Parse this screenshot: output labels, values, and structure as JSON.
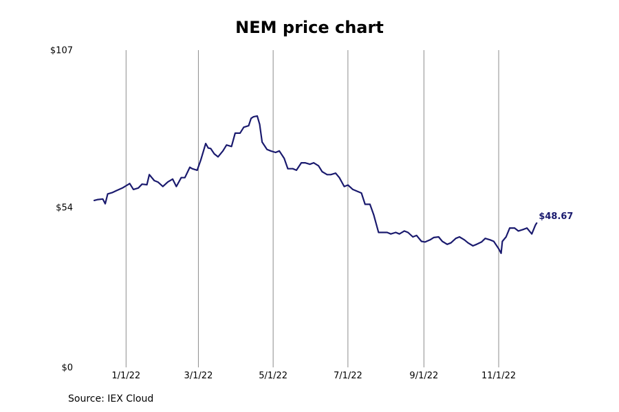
{
  "chart_data": {
    "type": "line",
    "title": "NEM price chart",
    "source": "Source: IEX Cloud",
    "xlabel": "",
    "ylabel": "",
    "y_ticks": [
      {
        "value": 0,
        "label": "$0"
      },
      {
        "value": 54,
        "label": "$54"
      },
      {
        "value": 107,
        "label": "$107"
      }
    ],
    "ylim": [
      0,
      107
    ],
    "xlim": [
      "2021-11-22",
      "2022-12-31"
    ],
    "x_ticks": [
      {
        "date": "2022-01-01",
        "label": "1/1/22"
      },
      {
        "date": "2022-03-01",
        "label": "3/1/22"
      },
      {
        "date": "2022-05-01",
        "label": "5/1/22"
      },
      {
        "date": "2022-07-01",
        "label": "7/1/22"
      },
      {
        "date": "2022-09-01",
        "label": "9/1/22"
      },
      {
        "date": "2022-11-01",
        "label": "11/1/22"
      }
    ],
    "vertical_grid": true,
    "line_color": "#1a1a6e",
    "last_label": "$48.67",
    "series": [
      {
        "name": "",
        "points": [
          [
            "2021-12-06",
            56.3
          ],
          [
            "2021-12-09",
            56.6
          ],
          [
            "2021-12-13",
            56.8
          ],
          [
            "2021-12-15",
            55.2
          ],
          [
            "2021-12-17",
            58.5
          ],
          [
            "2021-12-21",
            59.0
          ],
          [
            "2021-12-24",
            59.6
          ],
          [
            "2021-12-29",
            60.5
          ],
          [
            "2022-01-04",
            62.0
          ],
          [
            "2022-01-07",
            60.0
          ],
          [
            "2022-01-11",
            60.5
          ],
          [
            "2022-01-14",
            61.8
          ],
          [
            "2022-01-18",
            61.6
          ],
          [
            "2022-01-20",
            65.0
          ],
          [
            "2022-01-24",
            63.0
          ],
          [
            "2022-01-27",
            62.5
          ],
          [
            "2022-01-31",
            61.0
          ],
          [
            "2022-02-04",
            62.5
          ],
          [
            "2022-02-08",
            63.5
          ],
          [
            "2022-02-11",
            61.0
          ],
          [
            "2022-02-15",
            64.0
          ],
          [
            "2022-02-18",
            64.0
          ],
          [
            "2022-02-22",
            67.5
          ],
          [
            "2022-02-24",
            67.0
          ],
          [
            "2022-02-28",
            66.5
          ],
          [
            "2022-03-03",
            70.0
          ],
          [
            "2022-03-07",
            75.5
          ],
          [
            "2022-03-09",
            74.0
          ],
          [
            "2022-03-11",
            73.8
          ],
          [
            "2022-03-14",
            72.0
          ],
          [
            "2022-03-17",
            71.0
          ],
          [
            "2022-03-21",
            73.0
          ],
          [
            "2022-03-24",
            75.0
          ],
          [
            "2022-03-28",
            74.5
          ],
          [
            "2022-03-31",
            79.0
          ],
          [
            "2022-04-04",
            79.0
          ],
          [
            "2022-04-07",
            81.0
          ],
          [
            "2022-04-11",
            81.5
          ],
          [
            "2022-04-13",
            84.0
          ],
          [
            "2022-04-15",
            84.5
          ],
          [
            "2022-04-18",
            84.8
          ],
          [
            "2022-04-20",
            82.0
          ],
          [
            "2022-04-22",
            76.0
          ],
          [
            "2022-04-26",
            73.5
          ],
          [
            "2022-04-29",
            73.0
          ],
          [
            "2022-05-03",
            72.5
          ],
          [
            "2022-05-06",
            73.0
          ],
          [
            "2022-05-10",
            70.5
          ],
          [
            "2022-05-13",
            67.0
          ],
          [
            "2022-05-17",
            67.0
          ],
          [
            "2022-05-20",
            66.5
          ],
          [
            "2022-05-24",
            69.0
          ],
          [
            "2022-05-27",
            69.0
          ],
          [
            "2022-05-31",
            68.5
          ],
          [
            "2022-06-03",
            69.0
          ],
          [
            "2022-06-07",
            68.0
          ],
          [
            "2022-06-10",
            66.0
          ],
          [
            "2022-06-14",
            65.0
          ],
          [
            "2022-06-17",
            65.0
          ],
          [
            "2022-06-21",
            65.5
          ],
          [
            "2022-06-24",
            64.0
          ],
          [
            "2022-06-28",
            61.0
          ],
          [
            "2022-07-01",
            61.5
          ],
          [
            "2022-07-05",
            60.0
          ],
          [
            "2022-07-08",
            59.5
          ],
          [
            "2022-07-12",
            58.8
          ],
          [
            "2022-07-15",
            55.0
          ],
          [
            "2022-07-19",
            55.0
          ],
          [
            "2022-07-22",
            51.5
          ],
          [
            "2022-07-26",
            45.5
          ],
          [
            "2022-07-29",
            45.5
          ],
          [
            "2022-08-02",
            45.5
          ],
          [
            "2022-08-05",
            45.0
          ],
          [
            "2022-08-09",
            45.5
          ],
          [
            "2022-08-12",
            45.0
          ],
          [
            "2022-08-16",
            46.0
          ],
          [
            "2022-08-19",
            45.5
          ],
          [
            "2022-08-23",
            44.0
          ],
          [
            "2022-08-26",
            44.5
          ],
          [
            "2022-08-30",
            42.5
          ],
          [
            "2022-09-02",
            42.3
          ],
          [
            "2022-09-06",
            43.0
          ],
          [
            "2022-09-09",
            43.8
          ],
          [
            "2022-09-13",
            44.0
          ],
          [
            "2022-09-16",
            42.5
          ],
          [
            "2022-09-20",
            41.5
          ],
          [
            "2022-09-23",
            42.0
          ],
          [
            "2022-09-27",
            43.5
          ],
          [
            "2022-09-30",
            44.0
          ],
          [
            "2022-10-04",
            43.0
          ],
          [
            "2022-10-07",
            42.0
          ],
          [
            "2022-10-11",
            41.0
          ],
          [
            "2022-10-14",
            41.5
          ],
          [
            "2022-10-18",
            42.3
          ],
          [
            "2022-10-21",
            43.5
          ],
          [
            "2022-10-25",
            43.0
          ],
          [
            "2022-10-28",
            42.5
          ],
          [
            "2022-11-01",
            40.0
          ],
          [
            "2022-11-03",
            38.5
          ],
          [
            "2022-11-04",
            42.5
          ],
          [
            "2022-11-07",
            44.0
          ],
          [
            "2022-11-10",
            47.0
          ],
          [
            "2022-11-14",
            47.0
          ],
          [
            "2022-11-17",
            46.0
          ],
          [
            "2022-11-21",
            46.5
          ],
          [
            "2022-11-24",
            47.0
          ],
          [
            "2022-11-28",
            45.0
          ],
          [
            "2022-12-01",
            48.0
          ],
          [
            "2022-12-02",
            48.67
          ]
        ]
      }
    ]
  }
}
